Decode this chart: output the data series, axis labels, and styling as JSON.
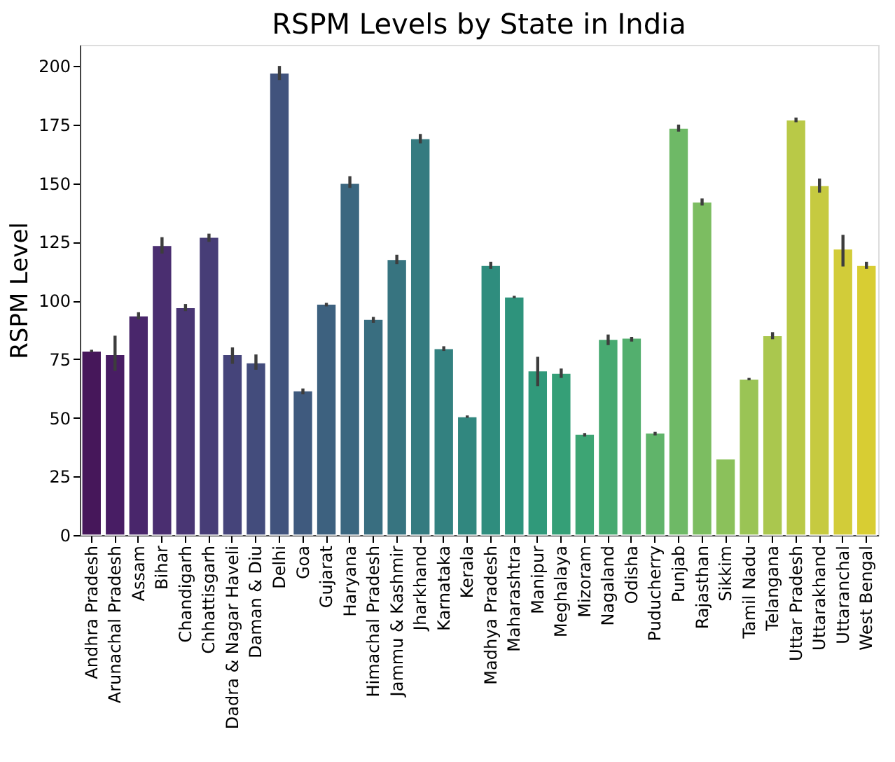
{
  "chart_data": {
    "type": "bar",
    "title": "RSPM Levels by State in India",
    "ylabel": "RSPM Level",
    "categories": [
      "Andhra Pradesh",
      "Arunachal Pradesh",
      "Assam",
      "Bihar",
      "Chandigarh",
      "Chhattisgarh",
      "Dadra & Nagar Haveli",
      "Daman & Diu",
      "Delhi",
      "Goa",
      "Gujarat",
      "Haryana",
      "Himachal Pradesh",
      "Jammu & Kashmir",
      "Jharkhand",
      "Karnataka",
      "Kerala",
      "Madhya Pradesh",
      "Maharashtra",
      "Manipur",
      "Meghalaya",
      "Mizoram",
      "Nagaland",
      "Odisha",
      "Puducherry",
      "Punjab",
      "Rajasthan",
      "Sikkim",
      "Tamil Nadu",
      "Telangana",
      "Uttar Pradesh",
      "Uttarakhand",
      "Uttaranchal",
      "West Bengal"
    ],
    "values": [
      78.5,
      77,
      93.5,
      123.5,
      97,
      127,
      77,
      73.5,
      197,
      61.5,
      98.5,
      150,
      92,
      117.5,
      169,
      79.5,
      50.5,
      115,
      101.5,
      70,
      69,
      43,
      83.5,
      84,
      43.5,
      173.5,
      142,
      32.5,
      66.5,
      85,
      177,
      149,
      122,
      115
    ],
    "errors": [
      [
        78,
        79
      ],
      [
        70,
        85
      ],
      [
        92,
        95
      ],
      [
        120,
        127
      ],
      [
        95.5,
        98.5
      ],
      [
        125,
        128.5
      ],
      [
        73,
        80
      ],
      [
        70.5,
        77
      ],
      [
        194,
        200
      ],
      [
        60,
        62.5
      ],
      [
        97.5,
        99
      ],
      [
        148,
        153
      ],
      [
        90.5,
        93
      ],
      [
        115.5,
        119.5
      ],
      [
        167,
        171
      ],
      [
        78.5,
        80.5
      ],
      [
        50,
        51
      ],
      [
        113.5,
        116.5
      ],
      [
        101,
        102
      ],
      [
        63.5,
        76
      ],
      [
        67,
        71
      ],
      [
        42,
        43.5
      ],
      [
        81,
        85.5
      ],
      [
        82.5,
        84.5
      ],
      [
        42.5,
        44
      ],
      [
        172,
        175
      ],
      [
        140.5,
        143.5
      ],
      null,
      [
        66,
        67
      ],
      [
        83.5,
        86.5
      ],
      [
        176,
        178
      ],
      [
        146,
        152
      ],
      [
        114.5,
        128
      ],
      [
        113.5,
        116.5
      ]
    ],
    "colors": [
      "#46175a",
      "#481d64",
      "#49266b",
      "#4a2e70",
      "#493674",
      "#473d77",
      "#45447a",
      "#434c7c",
      "#41537d",
      "#3f5a7e",
      "#3d617f",
      "#3b6780",
      "#396e80",
      "#377480",
      "#357b80",
      "#338180",
      "#31877f",
      "#2f8d7e",
      "#2e937c",
      "#30997a",
      "#359f77",
      "#3da574",
      "#47aa71",
      "#53af6e",
      "#60b46a",
      "#6eb966",
      "#7cbd61",
      "#8bc15b",
      "#9ac455",
      "#aac74e",
      "#b9c947",
      "#c6ca40",
      "#d2cc39",
      "#d8cd33"
    ],
    "ylim": [
      0,
      209
    ],
    "yticks": [
      0,
      25,
      50,
      75,
      100,
      125,
      150,
      175,
      200
    ],
    "grid": false
  }
}
